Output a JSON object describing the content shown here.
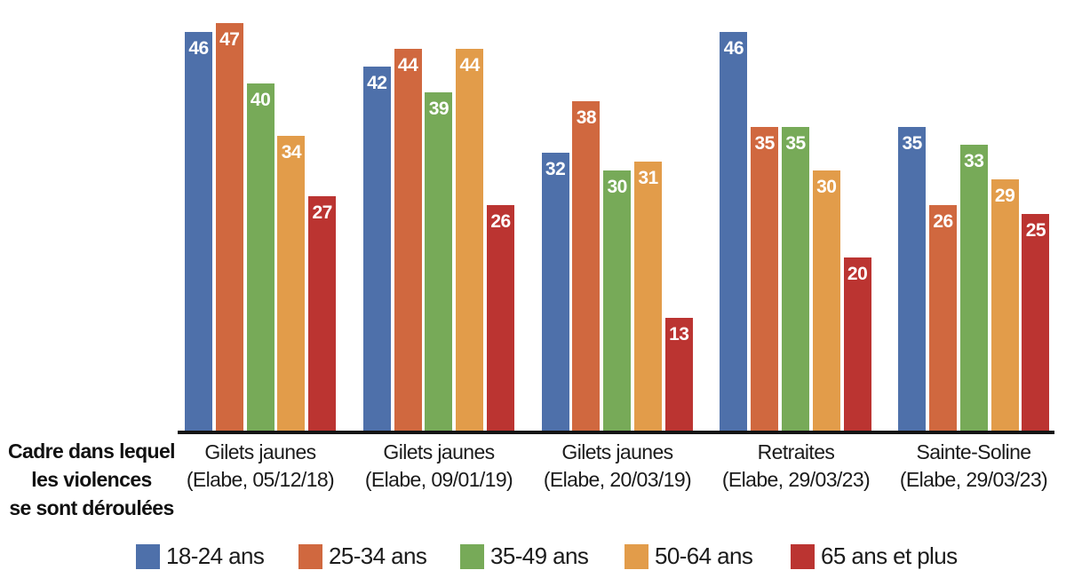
{
  "chart_data": {
    "type": "bar",
    "title": "",
    "axis_title_lines": [
      "Cadre dans lequel",
      "les violences",
      "se sont déroulées"
    ],
    "categories": [
      {
        "line1": "Gilets jaunes",
        "line2": "(Elabe, 05/12/18)"
      },
      {
        "line1": "Gilets jaunes",
        "line2": "(Elabe, 09/01/19)"
      },
      {
        "line1": "Gilets jaunes",
        "line2": "(Elabe, 20/03/19)"
      },
      {
        "line1": "Retraites",
        "line2": "(Elabe, 29/03/23)"
      },
      {
        "line1": "Sainte-Soline",
        "line2": "(Elabe, 29/03/23)"
      }
    ],
    "series": [
      {
        "name": "18-24 ans",
        "color": "#4e70aa",
        "values": [
          46,
          42,
          32,
          46,
          35
        ]
      },
      {
        "name": "25-34 ans",
        "color": "#d0683f",
        "values": [
          47,
          44,
          38,
          35,
          26
        ]
      },
      {
        "name": "35-49 ans",
        "color": "#77aa58",
        "values": [
          40,
          39,
          30,
          35,
          33
        ]
      },
      {
        "name": "50-64 ans",
        "color": "#e29c4a",
        "values": [
          34,
          44,
          31,
          30,
          29
        ]
      },
      {
        "name": "65 ans et plus",
        "color": "#bb3431",
        "values": [
          27,
          26,
          13,
          20,
          25
        ]
      }
    ],
    "ylim": [
      0,
      47
    ],
    "value_labels": true,
    "grid": false,
    "legend_position": "bottom",
    "axis_line_color": "#141414"
  }
}
